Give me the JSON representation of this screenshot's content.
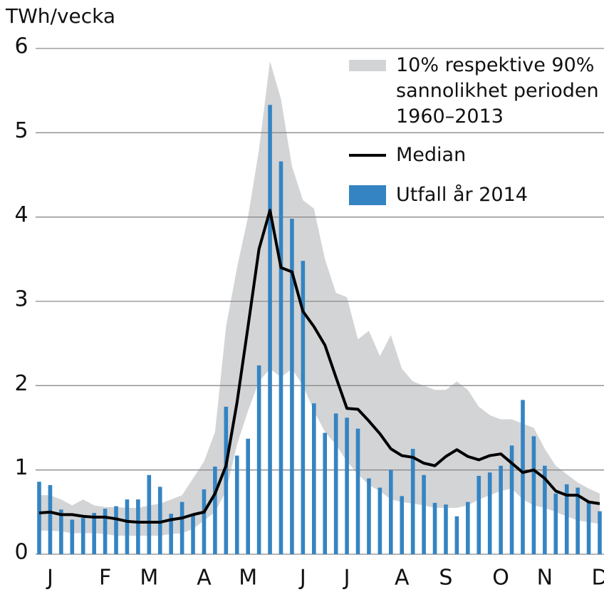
{
  "chart_data": {
    "type": "bar-line-band",
    "ylabel": "TWh/vecka",
    "categories": [
      null,
      "J",
      null,
      null,
      null,
      null,
      "F",
      null,
      null,
      null,
      "M",
      null,
      null,
      null,
      null,
      "A",
      null,
      null,
      null,
      "M",
      null,
      null,
      null,
      null,
      "J",
      null,
      null,
      null,
      "J",
      null,
      null,
      null,
      null,
      "A",
      null,
      null,
      null,
      "S",
      null,
      null,
      null,
      null,
      "O",
      null,
      null,
      null,
      "N",
      null,
      null,
      null,
      null,
      "D"
    ],
    "ylim": [
      0,
      6
    ],
    "yticks": [
      0,
      1,
      2,
      3,
      4,
      5,
      6
    ],
    "grid": true,
    "series": [
      {
        "name": "10% respektive 90% sannolikhet perioden 1960–2013",
        "type": "band",
        "color": "#d3d4d6",
        "upper": [
          0.7,
          0.7,
          0.65,
          0.58,
          0.65,
          0.58,
          0.56,
          0.56,
          0.55,
          0.55,
          0.58,
          0.6,
          0.65,
          0.7,
          0.9,
          1.1,
          1.45,
          2.7,
          3.4,
          4.0,
          4.8,
          5.85,
          5.4,
          4.6,
          4.2,
          4.1,
          3.5,
          3.1,
          3.05,
          2.55,
          2.65,
          2.35,
          2.6,
          2.2,
          2.05,
          2.0,
          1.95,
          1.95,
          2.05,
          1.95,
          1.75,
          1.65,
          1.6,
          1.6,
          1.55,
          1.5,
          1.25,
          1.05,
          0.95,
          0.85,
          0.78,
          0.72
        ],
        "lower": [
          0.28,
          0.28,
          0.27,
          0.25,
          0.25,
          0.25,
          0.24,
          0.22,
          0.22,
          0.22,
          0.22,
          0.22,
          0.24,
          0.25,
          0.3,
          0.4,
          0.5,
          0.75,
          1.3,
          1.7,
          2.05,
          2.2,
          2.1,
          2.2,
          2.0,
          1.7,
          1.45,
          1.3,
          1.1,
          0.95,
          0.82,
          0.75,
          0.65,
          0.62,
          0.6,
          0.58,
          0.55,
          0.55,
          0.55,
          0.58,
          0.65,
          0.7,
          0.75,
          0.78,
          0.65,
          0.58,
          0.55,
          0.5,
          0.45,
          0.4,
          0.38,
          0.36
        ]
      },
      {
        "name": "Median",
        "type": "line",
        "color": "#000000",
        "values": [
          0.49,
          0.5,
          0.47,
          0.47,
          0.45,
          0.44,
          0.44,
          0.42,
          0.39,
          0.38,
          0.38,
          0.38,
          0.41,
          0.43,
          0.47,
          0.5,
          0.72,
          1.05,
          1.8,
          2.7,
          3.62,
          4.08,
          3.4,
          3.35,
          2.88,
          2.7,
          2.48,
          2.1,
          1.73,
          1.72,
          1.58,
          1.43,
          1.25,
          1.17,
          1.15,
          1.08,
          1.05,
          1.16,
          1.24,
          1.16,
          1.12,
          1.17,
          1.19,
          1.08,
          0.97,
          1.0,
          0.9,
          0.75,
          0.7,
          0.7,
          0.62,
          0.6
        ]
      },
      {
        "name": "Utfall år 2014",
        "type": "bar",
        "color": "#3484c3",
        "values": [
          0.86,
          0.82,
          0.53,
          0.41,
          0.43,
          0.49,
          0.54,
          0.57,
          0.65,
          0.65,
          0.94,
          0.8,
          0.48,
          0.62,
          0.47,
          0.77,
          1.04,
          1.75,
          1.17,
          1.37,
          2.24,
          5.33,
          4.66,
          3.98,
          3.48,
          1.79,
          1.44,
          1.67,
          1.62,
          1.49,
          0.9,
          0.79,
          1.0,
          0.69,
          1.25,
          0.94,
          0.61,
          0.59,
          0.45,
          0.62,
          0.93,
          0.97,
          1.05,
          1.29,
          1.83,
          1.4,
          1.05,
          0.72,
          0.83,
          0.79,
          0.62,
          0.51
        ]
      }
    ]
  }
}
